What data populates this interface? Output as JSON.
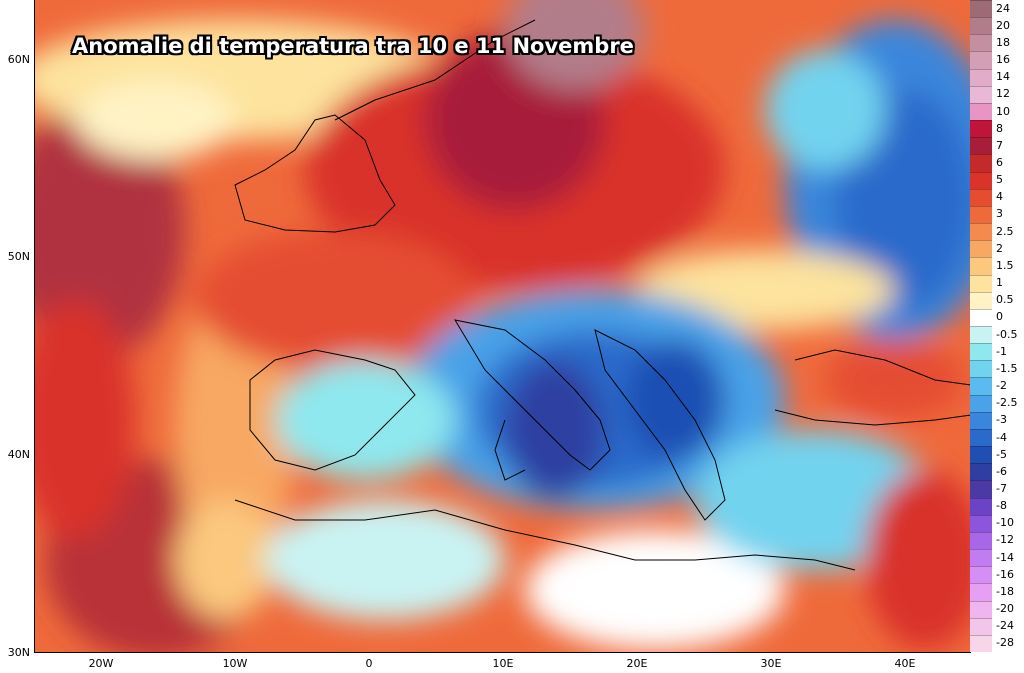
{
  "title": "Anomalie di temperatura tra 10 e 11 Novembre",
  "lat_labels": [
    "60N",
    "50N",
    "40N",
    "30N"
  ],
  "lon_labels": [
    "20W",
    "10W",
    "0",
    "10E",
    "20E",
    "30E",
    "40E"
  ],
  "legend": [
    {
      "label": "24",
      "color": "#9e6a74"
    },
    {
      "label": "20",
      "color": "#b27d8a"
    },
    {
      "label": "18",
      "color": "#c48fa0"
    },
    {
      "label": "16",
      "color": "#d29fb4"
    },
    {
      "label": "14",
      "color": "#e0acc8"
    },
    {
      "label": "12",
      "color": "#e9b8d6"
    },
    {
      "label": "10",
      "color": "#e795c2"
    },
    {
      "label": "8",
      "color": "#c0143b"
    },
    {
      "label": "7",
      "color": "#a81d3a"
    },
    {
      "label": "6",
      "color": "#c52a2a"
    },
    {
      "label": "5",
      "color": "#d9332a"
    },
    {
      "label": "4",
      "color": "#e54d30"
    },
    {
      "label": "3",
      "color": "#ef6a3b"
    },
    {
      "label": "2.5",
      "color": "#f58a4e"
    },
    {
      "label": "2",
      "color": "#f8a862"
    },
    {
      "label": "1.5",
      "color": "#fbc87e"
    },
    {
      "label": "1",
      "color": "#fde39d"
    },
    {
      "label": "0.5",
      "color": "#fff3c4"
    },
    {
      "label": "0",
      "color": "#ffffff"
    },
    {
      "label": "-0.5",
      "color": "#c9f3f3"
    },
    {
      "label": "-1",
      "color": "#8ee8ee"
    },
    {
      "label": "-1.5",
      "color": "#72d3ef"
    },
    {
      "label": "-2",
      "color": "#5bbbee"
    },
    {
      "label": "-2.5",
      "color": "#4aa2e8"
    },
    {
      "label": "-3",
      "color": "#3a86dc"
    },
    {
      "label": "-4",
      "color": "#2a6acb"
    },
    {
      "label": "-5",
      "color": "#1f4fb3"
    },
    {
      "label": "-6",
      "color": "#2f3fa1"
    },
    {
      "label": "-7",
      "color": "#4b3aa6"
    },
    {
      "label": "-8",
      "color": "#6a43c6"
    },
    {
      "label": "-10",
      "color": "#8b55de"
    },
    {
      "label": "-12",
      "color": "#a767e8"
    },
    {
      "label": "-14",
      "color": "#c07cf0"
    },
    {
      "label": "-16",
      "color": "#d58ef5"
    },
    {
      "label": "-18",
      "color": "#e6a0f3"
    },
    {
      "label": "-20",
      "color": "#eeb5ef"
    },
    {
      "label": "-24",
      "color": "#f2c6ea"
    },
    {
      "label": "-28",
      "color": "#f6d6e8"
    }
  ]
}
